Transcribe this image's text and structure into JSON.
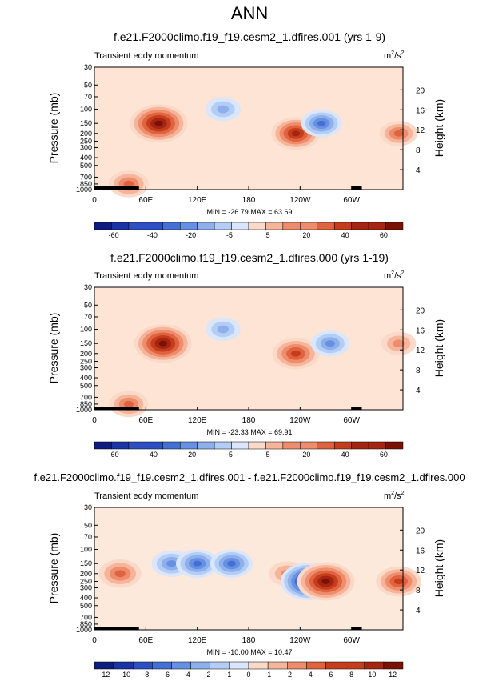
{
  "page_title": "ANN",
  "chart_data": [
    {
      "type": "contour-filled",
      "title": "f.e21.F2000climo.f19_f19.cesm2_1.dfires.001 (yrs 1-9)",
      "subtitle_left": "Transient eddy momentum",
      "units": "m",
      "units_sup": "2",
      "units_sep": "/s",
      "units_sup2": "2",
      "ylabel": "Pressure (mb)",
      "ylabel_right": "Height (km)",
      "y_ticks": [
        "30",
        "50",
        "70",
        "100",
        "150",
        "200",
        "250",
        "300",
        "400",
        "500",
        "700",
        "850",
        "1000"
      ],
      "y_ticks_right": [
        "20",
        "16",
        "12",
        "8",
        "4"
      ],
      "x_ticks": [
        "0",
        "60E",
        "120E",
        "180",
        "120W",
        "60W"
      ],
      "min_max": "MIN = -26.79   MAX = 63.69",
      "colorbar_labels": [
        "-60",
        "-40",
        "-20",
        "-5",
        "5",
        "20",
        "40",
        "60"
      ],
      "blobs": [
        {
          "lon": 75,
          "p": 150,
          "value": 63.69,
          "kind": "pos"
        },
        {
          "lon": 235,
          "p": 200,
          "value": 45,
          "kind": "pos"
        },
        {
          "lon": 150,
          "p": 100,
          "value": -15,
          "kind": "neg"
        },
        {
          "lon": 265,
          "p": 150,
          "value": -26.79,
          "kind": "neg"
        },
        {
          "lon": 355,
          "p": 200,
          "value": 20,
          "kind": "pos"
        },
        {
          "lon": 40,
          "p": 850,
          "value": 25,
          "kind": "pos"
        }
      ]
    },
    {
      "type": "contour-filled",
      "title": "f.e21.F2000climo.f19_f19.cesm2_1.dfires.000 (yrs 1-19)",
      "subtitle_left": "Transient eddy momentum",
      "units": "m",
      "units_sup": "2",
      "units_sep": "/s",
      "units_sup2": "2",
      "ylabel": "Pressure (mb)",
      "ylabel_right": "Height (km)",
      "y_ticks": [
        "30",
        "50",
        "70",
        "100",
        "150",
        "200",
        "250",
        "300",
        "400",
        "500",
        "700",
        "850",
        "1000"
      ],
      "y_ticks_right": [
        "20",
        "16",
        "12",
        "8",
        "4"
      ],
      "x_ticks": [
        "0",
        "60E",
        "120E",
        "180",
        "120W",
        "60W"
      ],
      "min_max": "MIN = -23.33   MAX = 69.91",
      "colorbar_labels": [
        "-60",
        "-40",
        "-20",
        "-5",
        "5",
        "20",
        "40",
        "60"
      ],
      "blobs": [
        {
          "lon": 80,
          "p": 150,
          "value": 69.91,
          "kind": "pos"
        },
        {
          "lon": 235,
          "p": 200,
          "value": 45,
          "kind": "pos"
        },
        {
          "lon": 150,
          "p": 100,
          "value": -15,
          "kind": "neg"
        },
        {
          "lon": 275,
          "p": 150,
          "value": -23.33,
          "kind": "neg"
        },
        {
          "lon": 355,
          "p": 150,
          "value": 15,
          "kind": "pos"
        },
        {
          "lon": 40,
          "p": 850,
          "value": 25,
          "kind": "pos"
        }
      ]
    },
    {
      "type": "contour-filled",
      "title": "f.e21.F2000climo.f19_f19.cesm2_1.dfires.001 - f.e21.F2000climo.f19_f19.cesm2_1.dfires.000",
      "subtitle_left": "Transient eddy momentum",
      "units": "m",
      "units_sup": "2",
      "units_sep": "/s",
      "units_sup2": "2",
      "ylabel": "Pressure (mb)",
      "ylabel_right": "Height (km)",
      "y_ticks": [
        "30",
        "50",
        "70",
        "100",
        "150",
        "200",
        "250",
        "300",
        "400",
        "500",
        "700",
        "850",
        "1000"
      ],
      "y_ticks_right": [
        "20",
        "16",
        "12",
        "8",
        "4"
      ],
      "x_ticks": [
        "0",
        "60E",
        "120E",
        "180",
        "120W",
        "60W"
      ],
      "min_max": "MIN = -10.00   MAX = 10.47",
      "colorbar_labels": [
        "-12",
        "-10",
        "-8",
        "-6",
        "-4",
        "-2",
        "-1",
        "0",
        "1",
        "2",
        "4",
        "6",
        "8",
        "10",
        "12"
      ],
      "blobs": [
        {
          "lon": 30,
          "p": 200,
          "value": 5,
          "kind": "pos"
        },
        {
          "lon": 90,
          "p": 150,
          "value": -4,
          "kind": "neg"
        },
        {
          "lon": 120,
          "p": 150,
          "value": -5,
          "kind": "neg"
        },
        {
          "lon": 160,
          "p": 150,
          "value": -5,
          "kind": "neg"
        },
        {
          "lon": 225,
          "p": 200,
          "value": 3,
          "kind": "pos"
        },
        {
          "lon": 250,
          "p": 250,
          "value": -10.0,
          "kind": "neg"
        },
        {
          "lon": 270,
          "p": 250,
          "value": 10.47,
          "kind": "pos"
        },
        {
          "lon": 355,
          "p": 250,
          "value": 6,
          "kind": "pos"
        }
      ]
    }
  ]
}
